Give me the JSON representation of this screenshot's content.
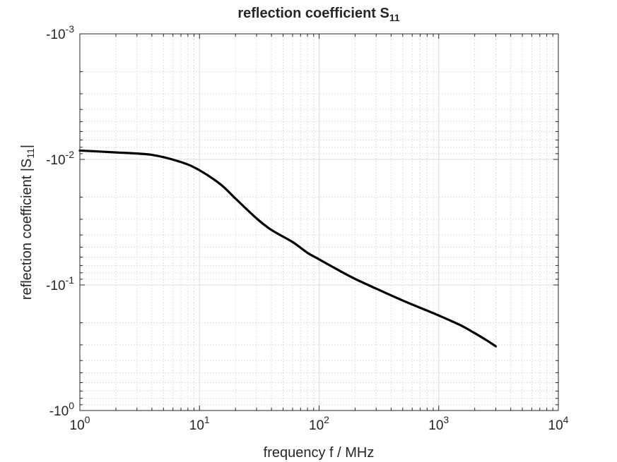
{
  "chart_data": {
    "type": "line",
    "title_main": "reflection coefficient S",
    "title_sub": "11",
    "xlabel": "frequency f / MHz",
    "ylabel_main": "reflection coefficient |S",
    "ylabel_sub": "11",
    "ylabel_end": "|",
    "xscale": "log",
    "yscale": "log",
    "xlim": [
      1,
      10000
    ],
    "ylim": [
      0.001,
      1
    ],
    "y_reversed": true,
    "grid": true,
    "minor_grid": true,
    "x_ticks": [
      {
        "value": 1,
        "base": "10",
        "exp": "0"
      },
      {
        "value": 10,
        "base": "10",
        "exp": "1"
      },
      {
        "value": 100,
        "base": "10",
        "exp": "2"
      },
      {
        "value": 1000,
        "base": "10",
        "exp": "3"
      },
      {
        "value": 10000,
        "base": "10",
        "exp": "4"
      }
    ],
    "y_ticks": [
      {
        "value": 0.001,
        "base": "-10",
        "exp": "-3"
      },
      {
        "value": 0.01,
        "base": "-10",
        "exp": "-2"
      },
      {
        "value": 0.1,
        "base": "-10",
        "exp": "-1"
      },
      {
        "value": 1,
        "base": "-10",
        "exp": "0"
      }
    ],
    "series": [
      {
        "color": "#000000",
        "x": [
          1,
          2,
          4,
          7,
          10,
          15,
          20,
          30,
          40,
          60,
          80,
          100,
          150,
          200,
          300,
          500,
          700,
          1000,
          1500,
          2000,
          2500,
          3000
        ],
        "y": [
          0.0085,
          0.0088,
          0.0092,
          0.0105,
          0.0122,
          0.0158,
          0.0205,
          0.0295,
          0.0365,
          0.0455,
          0.0555,
          0.0625,
          0.0775,
          0.0895,
          0.107,
          0.133,
          0.152,
          0.175,
          0.208,
          0.242,
          0.275,
          0.308
        ]
      }
    ]
  }
}
